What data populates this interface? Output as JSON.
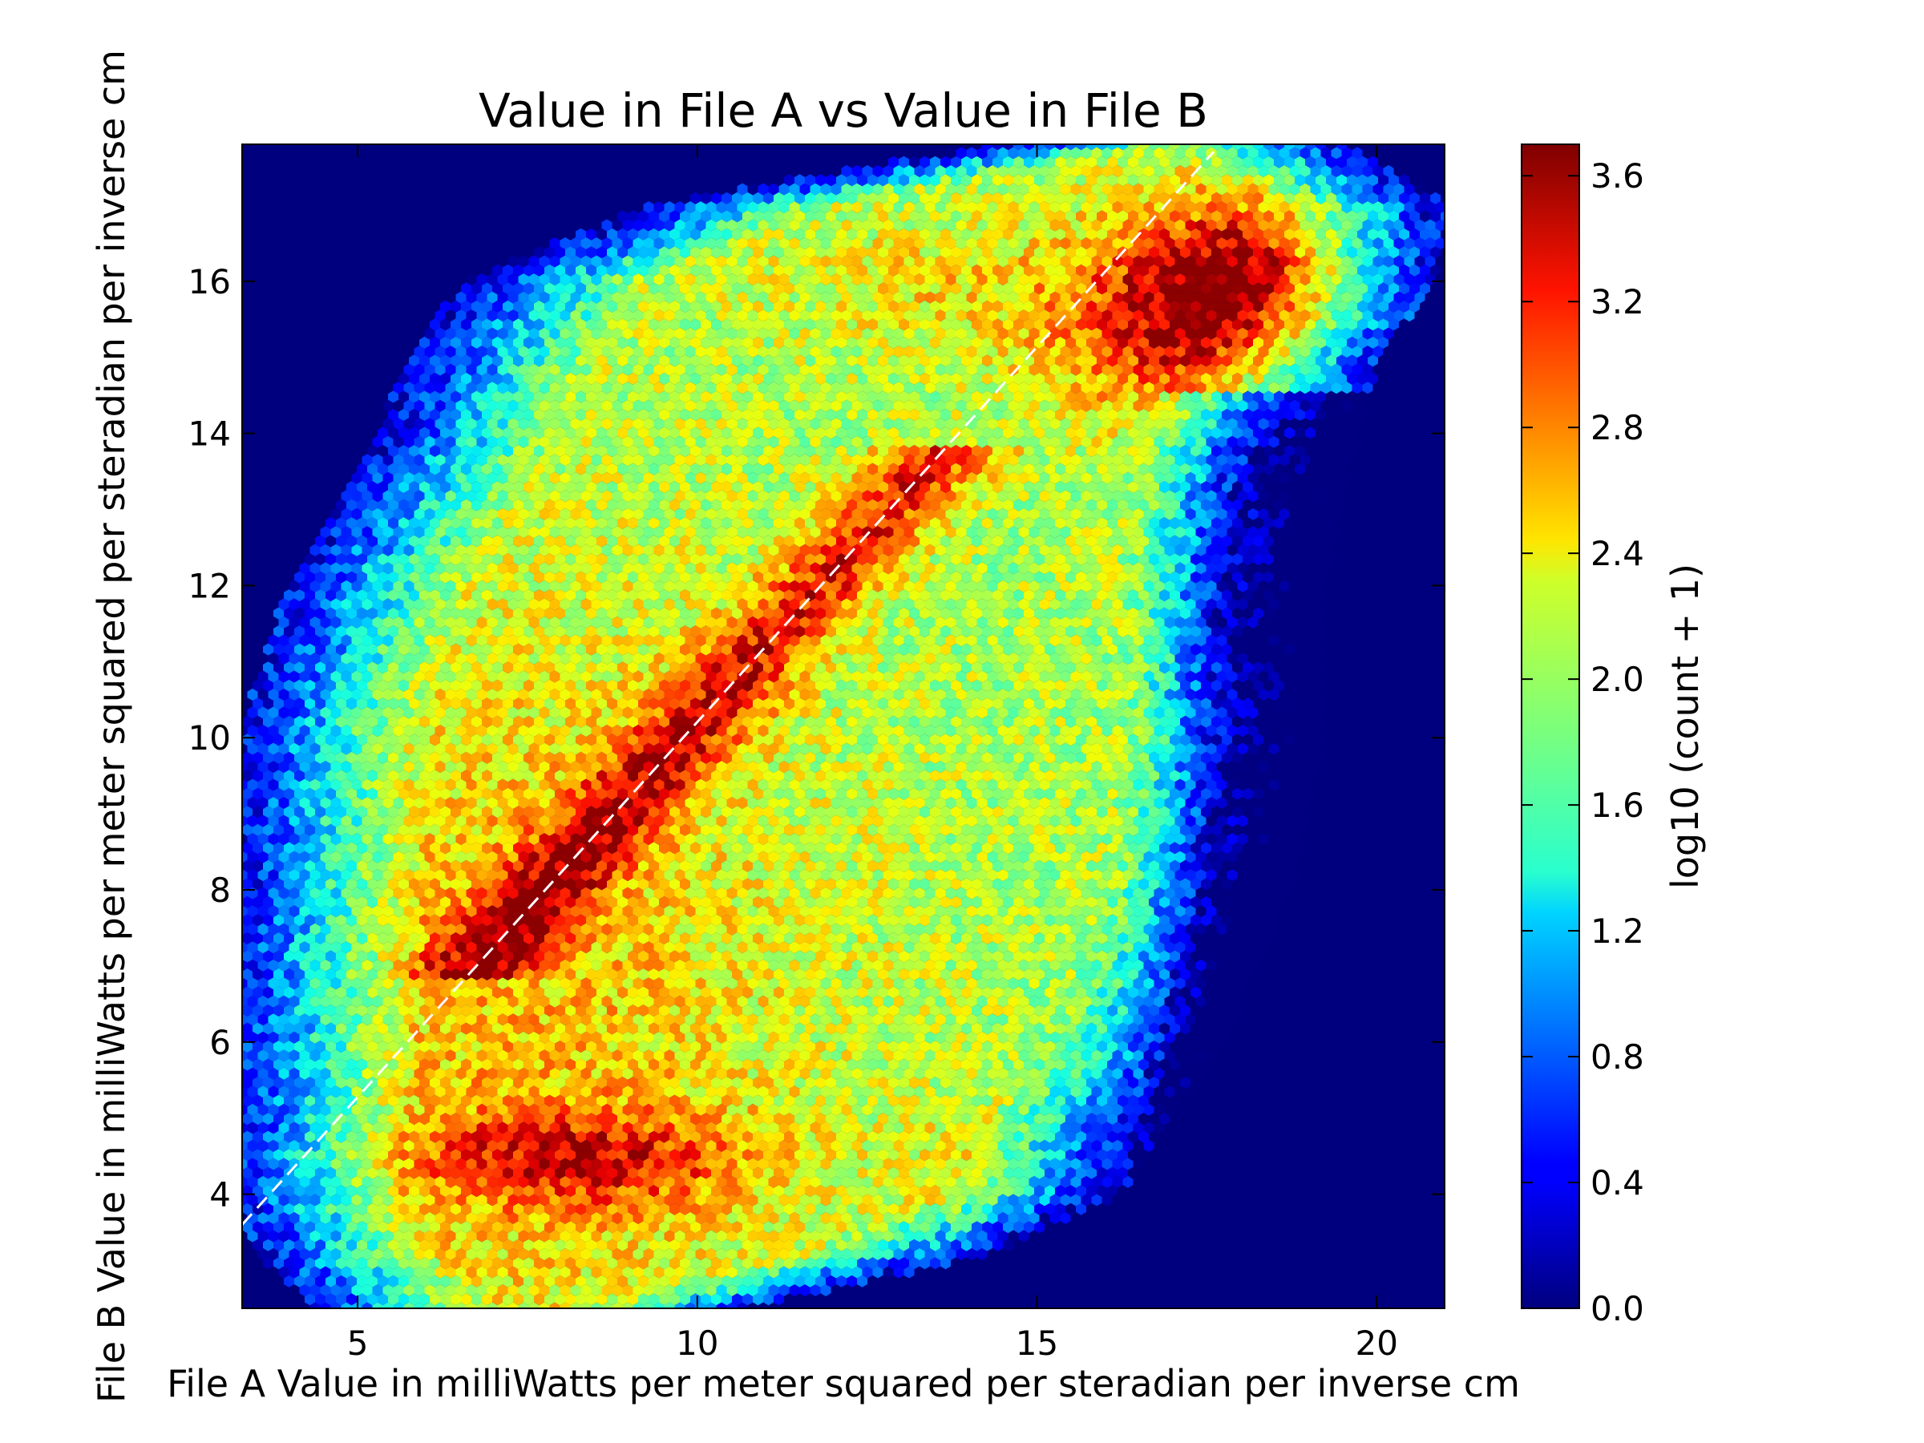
{
  "chart_data": {
    "type": "heatmap",
    "subtype": "hexbin",
    "title": "Value in File A vs Value in File B",
    "xlabel": "File A Value in milliWatts per meter squared per steradian per inverse cm",
    "ylabel": "File B Value in milliWatts per meter squared per steradian per inverse cm",
    "xlim": [
      3.3,
      21.0
    ],
    "ylim": [
      2.5,
      17.8
    ],
    "x_ticks": [
      5,
      10,
      15,
      20
    ],
    "y_ticks": [
      4,
      6,
      8,
      10,
      12,
      14,
      16
    ],
    "colormap": "jet",
    "background_color": "#00007f",
    "colorbar": {
      "label": "log10 (count + 1)",
      "range": [
        0.0,
        3.7
      ],
      "ticks": [
        "0.0",
        "0.4",
        "0.8",
        "1.2",
        "1.6",
        "2.0",
        "2.4",
        "2.8",
        "3.2",
        "3.6"
      ],
      "tick_values": [
        0.0,
        0.4,
        0.8,
        1.2,
        1.6,
        2.0,
        2.4,
        2.8,
        3.2,
        3.6
      ]
    },
    "reference_line": {
      "style": "dashed",
      "color": "#ffffff",
      "x": [
        3.3,
        17.6
      ],
      "y": [
        3.6,
        17.7
      ]
    },
    "density_features": [
      {
        "description": "diagonal ridge",
        "x": [
          7.5,
          12.5
        ],
        "y": [
          7.5,
          12.0
        ],
        "value": 3.1
      },
      {
        "description": "upper-right core",
        "x": 17.9,
        "y": 15.9,
        "value": 3.65
      },
      {
        "description": "lower-left horizontal band",
        "x": [
          6,
          10
        ],
        "y": 4.4,
        "value": 2.9
      }
    ]
  }
}
